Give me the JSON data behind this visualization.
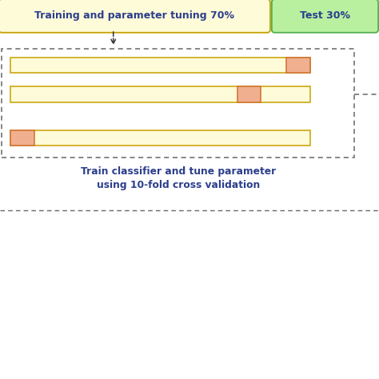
{
  "title_training": "Training and parameter tuning 70%",
  "title_test": "Test 30%",
  "caption": "Train classifier and tune parameter\nusing 10-fold cross validation",
  "bg_color": "#ffffff",
  "training_box_color": "#fefbd8",
  "training_box_edge": "#c8a000",
  "test_box_color": "#b8f0a0",
  "test_box_edge": "#50b050",
  "bar_fill": "#fefbd8",
  "bar_edge": "#c8a000",
  "highlight_fill": "#f0b090",
  "highlight_edge": "#d07030",
  "text_color": "#2c3e8c",
  "dashed_border_color": "#666666",
  "arrow_color": "#333333",
  "figsize": [
    4.74,
    4.74
  ],
  "dpi": 100,
  "xlim": [
    0,
    10
  ],
  "ylim": [
    0,
    10
  ]
}
